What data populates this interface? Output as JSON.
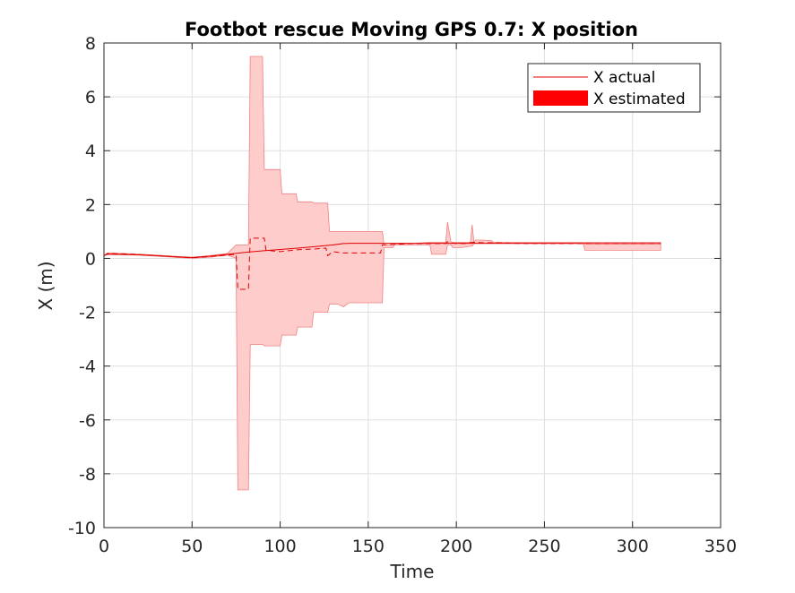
{
  "chart_data": {
    "type": "line",
    "title": "Footbot rescue Moving GPS 0.7: X position",
    "xlabel": "Time",
    "ylabel": "X (m)",
    "xlim": [
      0,
      350
    ],
    "ylim": [
      -10,
      8
    ],
    "xticks": [
      0,
      50,
      100,
      150,
      200,
      250,
      300,
      350
    ],
    "yticks": [
      8,
      6,
      4,
      2,
      0,
      -2,
      -4,
      -6,
      -8,
      -10
    ],
    "grid": true,
    "legend": {
      "placement": "top-right",
      "entries": [
        "X actual",
        "X estimated"
      ]
    },
    "colors": {
      "line": "#e00000",
      "band_fill": "#ffcccc",
      "band_edge": "#f08080",
      "legend_patch": "#ff0000"
    },
    "series": [
      {
        "name": "X actual",
        "style": "solid",
        "x": [
          0,
          2,
          10,
          20,
          30,
          40,
          50,
          60,
          70,
          80,
          90,
          100,
          110,
          120,
          130,
          136,
          140,
          150,
          160,
          170,
          180,
          190,
          200,
          210,
          220,
          240,
          260,
          280,
          300,
          316
        ],
        "y": [
          0.1,
          0.16,
          0.15,
          0.13,
          0.1,
          0.06,
          0.03,
          0.08,
          0.15,
          0.22,
          0.28,
          0.33,
          0.38,
          0.44,
          0.5,
          0.55,
          0.56,
          0.56,
          0.56,
          0.56,
          0.56,
          0.56,
          0.56,
          0.56,
          0.56,
          0.56,
          0.56,
          0.55,
          0.55,
          0.55
        ]
      },
      {
        "name": "X estimated",
        "style": "dashed",
        "x": [
          0,
          2,
          10,
          20,
          30,
          40,
          50,
          60,
          70,
          75,
          76,
          82,
          83,
          91,
          92,
          100,
          110,
          120,
          126,
          127,
          130,
          135,
          140,
          150,
          157,
          158,
          165,
          175,
          185,
          190,
          194,
          195,
          196,
          200,
          205,
          210,
          215,
          220,
          240,
          260,
          280,
          300,
          316
        ],
        "y": [
          0.1,
          0.18,
          0.17,
          0.14,
          0.1,
          0.06,
          0.02,
          0.07,
          0.12,
          0.15,
          -1.15,
          -1.15,
          0.75,
          0.75,
          0.3,
          0.25,
          0.32,
          0.35,
          0.38,
          0.1,
          0.25,
          0.2,
          0.2,
          0.2,
          0.2,
          0.5,
          0.52,
          0.55,
          0.55,
          0.55,
          0.55,
          0.62,
          0.58,
          0.55,
          0.55,
          0.6,
          0.58,
          0.58,
          0.55,
          0.55,
          0.55,
          0.55,
          0.55
        ]
      },
      {
        "name": "X estimated",
        "style": "band",
        "x": [
          0,
          2,
          20,
          40,
          50,
          60,
          70,
          75,
          76,
          82,
          83,
          90,
          91,
          100,
          101,
          109,
          110,
          118,
          119,
          127,
          128,
          133,
          136,
          139,
          158,
          159,
          164,
          165,
          175,
          185,
          186,
          194,
          195,
          197,
          198,
          203,
          208,
          209,
          210,
          211,
          215,
          220,
          221,
          240,
          272,
          273,
          316
        ],
        "upper": [
          0.1,
          0.2,
          0.16,
          0.08,
          0.04,
          0.1,
          0.18,
          0.5,
          0.5,
          0.5,
          7.5,
          7.5,
          3.3,
          3.3,
          2.4,
          2.4,
          2.1,
          2.1,
          2.05,
          2.05,
          1.0,
          1.0,
          1.0,
          1.0,
          1.0,
          0.5,
          0.5,
          0.52,
          0.55,
          0.6,
          0.6,
          0.6,
          1.35,
          0.6,
          0.6,
          0.6,
          0.6,
          1.25,
          0.6,
          0.68,
          0.68,
          0.66,
          0.6,
          0.6,
          0.6,
          0.6,
          0.6
        ],
        "lower": [
          0.1,
          0.14,
          0.12,
          0.04,
          0.0,
          0.04,
          0.12,
          0.0,
          -8.6,
          -8.6,
          -3.2,
          -3.2,
          -3.25,
          -3.25,
          -2.85,
          -2.85,
          -2.55,
          -2.55,
          -2.0,
          -2.0,
          -1.7,
          -1.7,
          -1.8,
          -1.65,
          -1.65,
          0.4,
          0.4,
          0.5,
          0.5,
          0.5,
          0.15,
          0.15,
          0.5,
          0.5,
          0.4,
          0.4,
          0.45,
          0.45,
          0.55,
          0.55,
          0.55,
          0.55,
          0.55,
          0.55,
          0.55,
          0.3,
          0.3
        ]
      }
    ]
  }
}
